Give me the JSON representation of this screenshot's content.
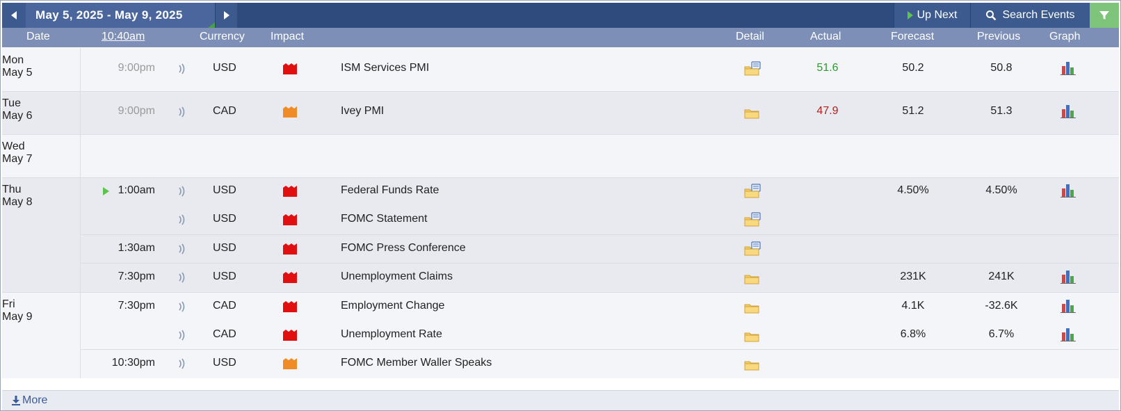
{
  "nav": {
    "date_range": "May 5, 2025 - May 9, 2025",
    "up_next_label": "Up Next",
    "search_label": "Search Events"
  },
  "header": {
    "date": "Date",
    "time": "10:40am",
    "currency": "Currency",
    "impact": "Impact",
    "detail": "Detail",
    "actual": "Actual",
    "forecast": "Forecast",
    "previous": "Previous",
    "graph": "Graph"
  },
  "days": [
    {
      "day": "Mon",
      "date": "May 5"
    },
    {
      "day": "Tue",
      "date": "May 6"
    },
    {
      "day": "Wed",
      "date": "May 7"
    },
    {
      "day": "Thu",
      "date": "May 8"
    },
    {
      "day": "Fri",
      "date": "May 9"
    }
  ],
  "events": [
    {
      "time": "9:00pm",
      "currency": "USD",
      "impact": "high",
      "event": "ISM Services PMI",
      "actual": "51.6",
      "actual_status": "better",
      "forecast": "50.2",
      "previous": "50.8"
    },
    {
      "time": "9:00pm",
      "currency": "CAD",
      "impact": "medium",
      "event": "Ivey PMI",
      "actual": "47.9",
      "actual_status": "worse",
      "forecast": "51.2",
      "previous": "51.3"
    },
    {
      "time": "1:00am",
      "currency": "USD",
      "impact": "high",
      "event": "Federal Funds Rate",
      "actual": "",
      "forecast": "4.50%",
      "previous": "4.50%"
    },
    {
      "time": "",
      "currency": "USD",
      "impact": "high",
      "event": "FOMC Statement",
      "actual": "",
      "forecast": "",
      "previous": ""
    },
    {
      "time": "1:30am",
      "currency": "USD",
      "impact": "high",
      "event": "FOMC Press Conference",
      "actual": "",
      "forecast": "",
      "previous": ""
    },
    {
      "time": "7:30pm",
      "currency": "USD",
      "impact": "high",
      "event": "Unemployment Claims",
      "actual": "",
      "forecast": "231K",
      "previous": "241K"
    },
    {
      "time": "7:30pm",
      "currency": "CAD",
      "impact": "high",
      "event": "Employment Change",
      "actual": "",
      "forecast": "4.1K",
      "previous": "-32.6K"
    },
    {
      "time": "",
      "currency": "CAD",
      "impact": "high",
      "event": "Unemployment Rate",
      "actual": "",
      "forecast": "6.8%",
      "previous": "6.7%"
    },
    {
      "time": "10:30pm",
      "currency": "USD",
      "impact": "medium",
      "event": "FOMC Member Waller Speaks",
      "actual": "",
      "forecast": "",
      "previous": ""
    }
  ],
  "footer": {
    "more_label": "More"
  },
  "colors": {
    "nav_bg": "#2f4a7c",
    "header_bg": "#7d8fb7",
    "row_light": "#f4f5f9",
    "row_dark": "#e8eaef",
    "impact_high": "#e01010",
    "impact_medium": "#f08c28",
    "actual_better": "#2d9a2d",
    "actual_worse": "#b02020"
  }
}
